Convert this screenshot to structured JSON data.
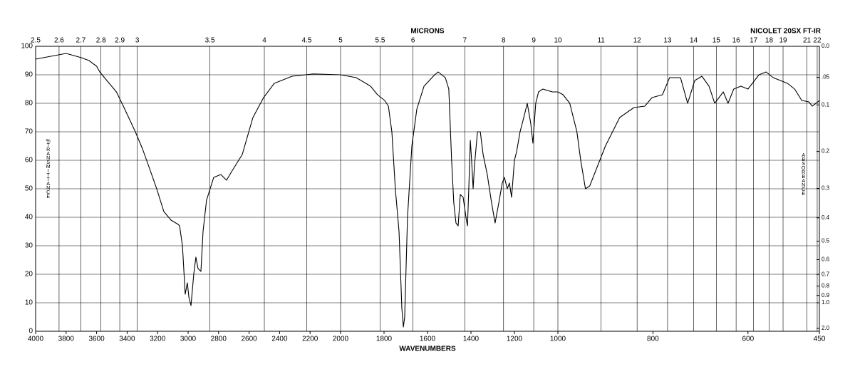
{
  "chart_data": {
    "type": "line",
    "title": "NICOLET 20SX FT-IR",
    "top_axis_label": "MICRONS",
    "x_label": "WAVENUMBERS",
    "y_label": "%TRANSMITTANCE",
    "y2_label": "ABSORBANCE",
    "color": "#000000",
    "grid": true,
    "xlim": [
      4000,
      450
    ],
    "xticks": [
      4000,
      3800,
      3600,
      3400,
      3200,
      3000,
      2800,
      2600,
      2400,
      2200,
      2000,
      1800,
      1600,
      1400,
      1200,
      1000,
      800,
      600,
      450
    ],
    "ylim": [
      0,
      100
    ],
    "yticks": [
      0,
      10,
      20,
      30,
      40,
      50,
      60,
      70,
      80,
      90,
      100
    ],
    "micron_ticks": [
      2.5,
      2.6,
      2.7,
      2.8,
      2.9,
      3,
      3.5,
      4,
      4.5,
      5,
      5.5,
      6,
      7,
      8,
      9,
      10,
      11,
      12,
      13,
      14,
      15,
      16,
      17,
      18,
      19,
      21,
      22
    ],
    "absorbance_ticks": [
      {
        "value": 0,
        "label": "0.0"
      },
      {
        "value": 0.05,
        "label": ".05"
      },
      0.1,
      0.2,
      0.3,
      0.4,
      0.5,
      0.6,
      0.7,
      0.8,
      0.9,
      {
        "value": 1,
        "label": "1.0"
      },
      {
        "value": 2,
        "label": "2.0"
      }
    ],
    "x": [
      4000,
      3950,
      3900,
      3850,
      3800,
      3766,
      3700,
      3650,
      3600,
      3579,
      3533,
      3470,
      3416,
      3346,
      3299,
      3252,
      3206,
      3159,
      3112,
      3065,
      3056,
      3037,
      3019,
      3005,
      2995,
      2981,
      2963,
      2949,
      2935,
      2916,
      2902,
      2879,
      2832,
      2785,
      2748,
      2715,
      2645,
      2575,
      2505,
      2435,
      2318,
      2178,
      2000,
      1928,
      1862,
      1830,
      1797,
      1780,
      1764,
      1748,
      1731,
      1718,
      1711,
      1705,
      1692,
      1672,
      1649,
      1616,
      1567,
      1551,
      1518,
      1502,
      1489,
      1479,
      1469,
      1459,
      1449,
      1436,
      1423,
      1416,
      1410,
      1403,
      1397,
      1390,
      1384,
      1370,
      1357,
      1344,
      1325,
      1305,
      1289,
      1272,
      1256,
      1246,
      1233,
      1223,
      1213,
      1200,
      1190,
      1174,
      1157,
      1141,
      1125,
      1115,
      1102,
      1089,
      1069,
      1026,
      1000,
      989,
      975,
      960,
      952,
      942,
      933,
      900,
      870,
      840,
      817,
      802,
      780,
      765,
      742,
      727,
      712,
      697,
      682,
      670,
      652,
      642,
      630,
      615,
      600,
      577,
      562,
      547,
      532,
      517,
      502,
      487,
      472,
      465,
      457,
      450
    ],
    "y": [
      95.5,
      96,
      96.5,
      97,
      97.5,
      97,
      96,
      95,
      93,
      91,
      88,
      84,
      78,
      70,
      64,
      57,
      50,
      42,
      39,
      37.5,
      37,
      30,
      13,
      17,
      12,
      9,
      20,
      26,
      22,
      21,
      35,
      46,
      54,
      55,
      53,
      56,
      62,
      75,
      82,
      87,
      89.5,
      90.3,
      90,
      89,
      86,
      83,
      81,
      79,
      70,
      50,
      35,
      8,
      1.5,
      5,
      40,
      65,
      78,
      86,
      90,
      91,
      89,
      85,
      60,
      45,
      38,
      37,
      48,
      47,
      40,
      37,
      50,
      67,
      60,
      50,
      58,
      70,
      70,
      62,
      55,
      45,
      38,
      45,
      52,
      54,
      50,
      52,
      47,
      60,
      63,
      70,
      75,
      80,
      73,
      66,
      80,
      84,
      85,
      84,
      84,
      83,
      80,
      70,
      60,
      50,
      51,
      65,
      75,
      78.5,
      79,
      82,
      83,
      89,
      89,
      80,
      88,
      89.5,
      86,
      80,
      84,
      80,
      85,
      86,
      85,
      90,
      91,
      89,
      88,
      87,
      85,
      81,
      80.5,
      79,
      80,
      81
    ]
  }
}
